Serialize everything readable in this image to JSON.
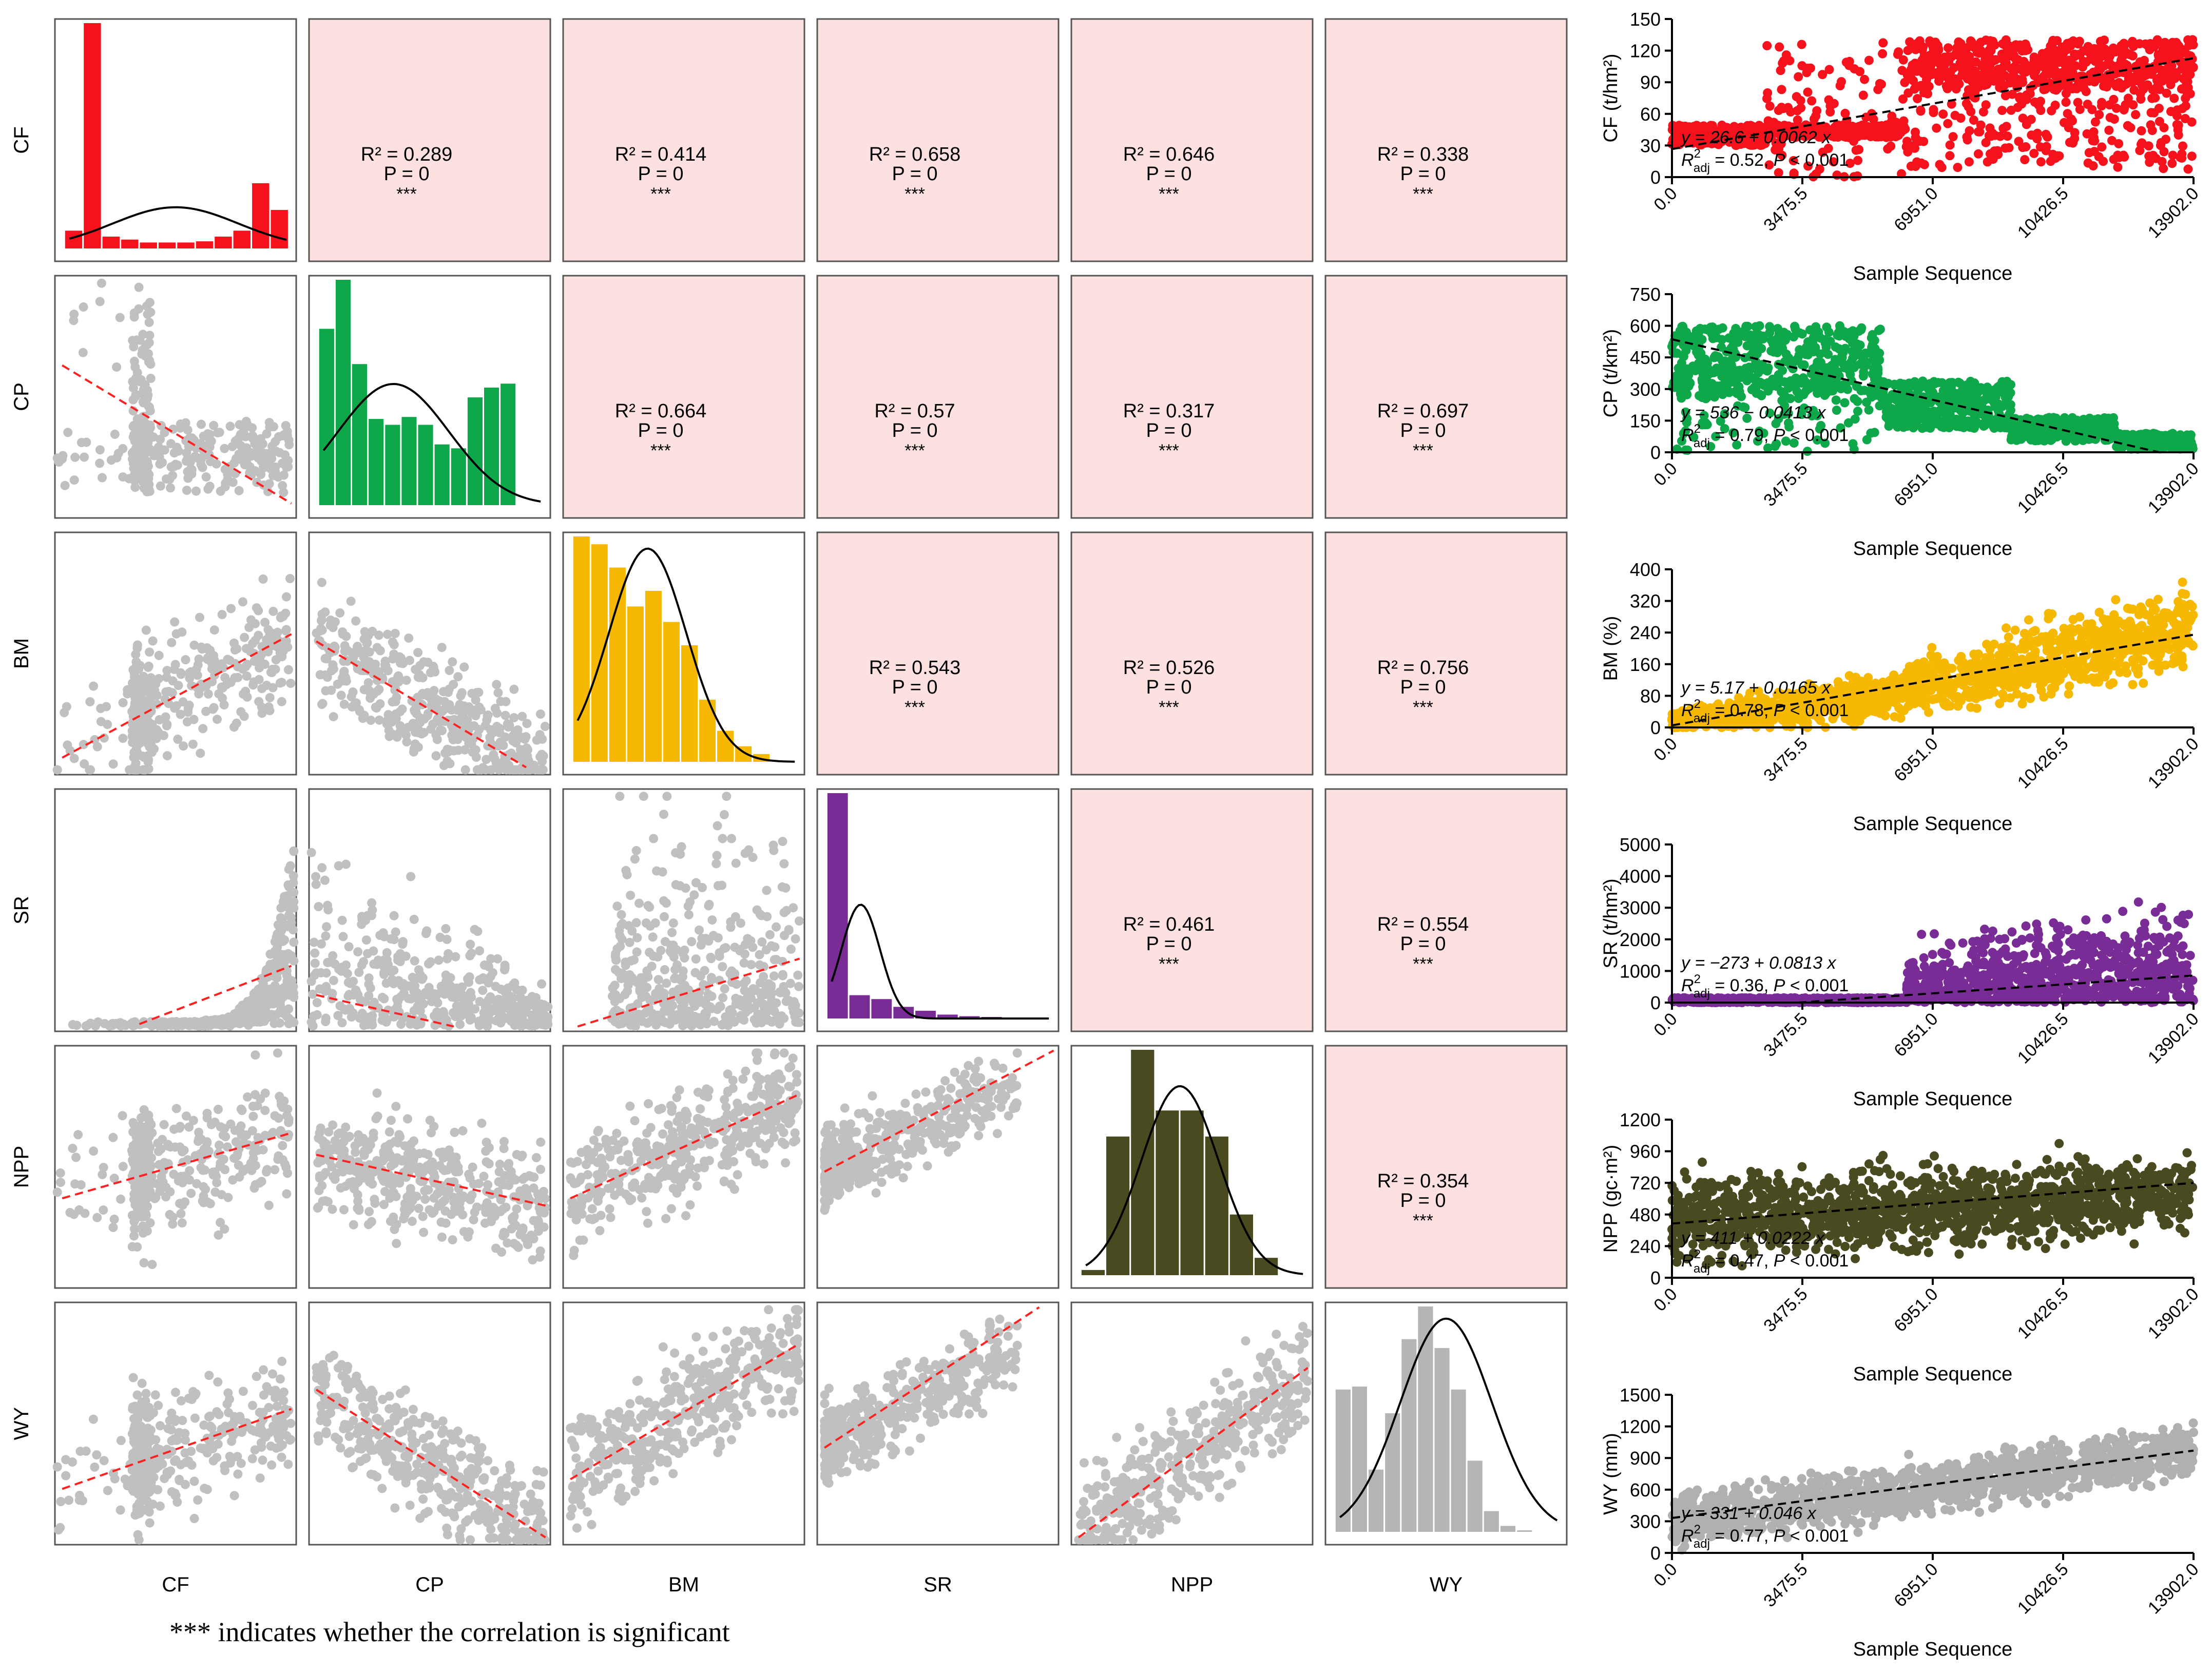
{
  "footnote": "*** indicates whether the correlation is significant",
  "colors": {
    "pair_panel_bg": "#fde0e0",
    "scatter_gray": "#c0c0c0",
    "fit_line_red": "#ff2020",
    "density_curve": "#000000"
  },
  "chart_data": [
    {
      "type": "pair-matrix",
      "variables": [
        "CF",
        "CP",
        "BM",
        "SR",
        "NPP",
        "WY"
      ],
      "variable_colors": [
        "#f5121c",
        "#0ea84a",
        "#f6b800",
        "#7a2c96",
        "#4a4a20",
        "#b5b5b5"
      ],
      "histograms": [
        [
          3.0,
          38.0,
          2.0,
          1.5,
          1.0,
          1.0,
          1.0,
          1.2,
          2.0,
          3.0,
          11.0,
          6.5
        ],
        [
          9.0,
          11.5,
          7.2,
          4.4,
          4.1,
          4.5,
          4.1,
          3.1,
          2.9,
          5.5,
          6.0,
          6.2
        ],
        [
          14.5,
          14.0,
          12.5,
          10.0,
          11.0,
          9.0,
          7.5,
          4.0,
          2.0,
          1.0,
          0.5
        ],
        [
          29.0,
          3.0,
          2.5,
          1.5,
          1.0,
          0.5,
          0.3,
          0.2,
          0.1
        ],
        [
          0.3,
          8.0,
          13.0,
          9.5,
          9.5,
          8.0,
          3.5,
          1.0
        ],
        [
          4.8,
          4.9,
          2.1,
          4.0,
          6.5,
          7.6,
          6.2,
          4.8,
          2.4,
          0.7,
          0.2,
          0.05
        ]
      ],
      "upper_stats": [
        {
          "row": "CF",
          "col": "CP",
          "r2": "R² = 0.289",
          "p": "P = 0",
          "sig": "***"
        },
        {
          "row": "CF",
          "col": "BM",
          "r2": "R² = 0.414",
          "p": "P = 0",
          "sig": "***"
        },
        {
          "row": "CF",
          "col": "SR",
          "r2": "R² = 0.658",
          "p": "P = 0",
          "sig": "***"
        },
        {
          "row": "CF",
          "col": "NPP",
          "r2": "R² = 0.646",
          "p": "P = 0",
          "sig": "***"
        },
        {
          "row": "CF",
          "col": "WY",
          "r2": "R² = 0.338",
          "p": "P = 0",
          "sig": "***"
        },
        {
          "row": "CP",
          "col": "BM",
          "r2": "R² = 0.664",
          "p": "P = 0",
          "sig": "***"
        },
        {
          "row": "CP",
          "col": "SR",
          "r2": "R² = 0.57",
          "p": "P = 0",
          "sig": "***"
        },
        {
          "row": "CP",
          "col": "NPP",
          "r2": "R² = 0.317",
          "p": "P = 0",
          "sig": "***"
        },
        {
          "row": "CP",
          "col": "WY",
          "r2": "R² = 0.697",
          "p": "P = 0",
          "sig": "***"
        },
        {
          "row": "BM",
          "col": "SR",
          "r2": "R² = 0.543",
          "p": "P = 0",
          "sig": "***"
        },
        {
          "row": "BM",
          "col": "NPP",
          "r2": "R² = 0.526",
          "p": "P = 0",
          "sig": "***"
        },
        {
          "row": "BM",
          "col": "WY",
          "r2": "R² = 0.756",
          "p": "P = 0",
          "sig": "***"
        },
        {
          "row": "SR",
          "col": "NPP",
          "r2": "R² = 0.461",
          "p": "P = 0",
          "sig": "***"
        },
        {
          "row": "SR",
          "col": "WY",
          "r2": "R² = 0.554",
          "p": "P = 0",
          "sig": "***"
        },
        {
          "row": "NPP",
          "col": "WY",
          "r2": "R² = 0.354",
          "p": "P = 0",
          "sig": "***"
        }
      ],
      "lower_fits": [
        {
          "row": "CP",
          "col": "CF",
          "x0": 0.03,
          "y0": 0.63,
          "x1": 0.98,
          "y1": 0.06
        },
        {
          "row": "BM",
          "col": "CF",
          "x0": 0.03,
          "y0": 0.07,
          "x1": 0.98,
          "y1": 0.58
        },
        {
          "row": "BM",
          "col": "CP",
          "x0": 0.03,
          "y0": 0.55,
          "x1": 0.9,
          "y1": 0.03
        },
        {
          "row": "SR",
          "col": "CF",
          "x0": 0.35,
          "y0": 0.03,
          "x1": 0.98,
          "y1": 0.27
        },
        {
          "row": "SR",
          "col": "CP",
          "x0": 0.03,
          "y0": 0.15,
          "x1": 0.6,
          "y1": 0.02
        },
        {
          "row": "SR",
          "col": "BM",
          "x0": 0.06,
          "y0": 0.02,
          "x1": 0.98,
          "y1": 0.3
        },
        {
          "row": "NPP",
          "col": "CF",
          "x0": 0.03,
          "y0": 0.37,
          "x1": 0.98,
          "y1": 0.64
        },
        {
          "row": "NPP",
          "col": "CP",
          "x0": 0.03,
          "y0": 0.55,
          "x1": 0.98,
          "y1": 0.34
        },
        {
          "row": "NPP",
          "col": "BM",
          "x0": 0.03,
          "y0": 0.37,
          "x1": 0.98,
          "y1": 0.8
        },
        {
          "row": "NPP",
          "col": "SR",
          "x0": 0.03,
          "y0": 0.48,
          "x1": 0.98,
          "y1": 0.98
        },
        {
          "row": "WY",
          "col": "CF",
          "x0": 0.03,
          "y0": 0.23,
          "x1": 0.98,
          "y1": 0.56
        },
        {
          "row": "WY",
          "col": "CP",
          "x0": 0.03,
          "y0": 0.64,
          "x1": 0.98,
          "y1": 0.03
        },
        {
          "row": "WY",
          "col": "BM",
          "x0": 0.03,
          "y0": 0.27,
          "x1": 0.98,
          "y1": 0.83
        },
        {
          "row": "WY",
          "col": "SR",
          "x0": 0.03,
          "y0": 0.4,
          "x1": 0.92,
          "y1": 0.98
        },
        {
          "row": "WY",
          "col": "NPP",
          "x0": 0.03,
          "y0": 0.03,
          "x1": 0.98,
          "y1": 0.73
        }
      ]
    },
    {
      "type": "scatter",
      "title": "CF",
      "xlabel": "Sample Sequence",
      "ylabel": "CF (t/hm²)",
      "color": "#f5121c",
      "xlim": [
        0,
        13902
      ],
      "ylim": [
        0,
        150
      ],
      "xticks": [
        "0.0",
        "3475.5",
        "6951.0",
        "10426.5",
        "13902.0"
      ],
      "yticks": [
        "0",
        "30",
        "60",
        "90",
        "120",
        "150"
      ],
      "fit": {
        "intercept": 26.6,
        "slope": 0.0062
      },
      "equation": "y = 26.6 + 0.0062 x",
      "stats": "R²adj = 0.52, P < 0.001",
      "stats_r2": "0.52",
      "stats_p": "0.001"
    },
    {
      "type": "scatter",
      "title": "CP",
      "xlabel": "Sample Sequence",
      "ylabel": "CP (t/km²)",
      "color": "#0ea84a",
      "xlim": [
        0,
        13902
      ],
      "ylim": [
        0,
        750
      ],
      "xticks": [
        "0.0",
        "3475.5",
        "6951.0",
        "10426.5",
        "13902.0"
      ],
      "yticks": [
        "0",
        "150",
        "300",
        "450",
        "600",
        "750"
      ],
      "fit": {
        "intercept": 536,
        "slope": -0.0413
      },
      "equation": "y = 536 − 0.0413 x",
      "stats": "R²adj = 0.79, P < 0.001",
      "stats_r2": "0.79",
      "stats_p": "0.001"
    },
    {
      "type": "scatter",
      "title": "BM",
      "xlabel": "Sample Sequence",
      "ylabel": "BM (%)",
      "color": "#f6b800",
      "xlim": [
        0,
        13902
      ],
      "ylim": [
        0,
        400
      ],
      "xticks": [
        "0.0",
        "3475.5",
        "6951.0",
        "10426.5",
        "13902.0"
      ],
      "yticks": [
        "0",
        "80",
        "160",
        "240",
        "320",
        "400"
      ],
      "fit": {
        "intercept": 5.17,
        "slope": 0.0165
      },
      "equation": "y = 5.17 + 0.0165 x",
      "stats": "R²adj = 0.78, P < 0.001",
      "stats_r2": "0.78",
      "stats_p": "0.001"
    },
    {
      "type": "scatter",
      "title": "SR",
      "xlabel": "Sample Sequence",
      "ylabel": "SR (t/hm²)",
      "color": "#7a2c96",
      "xlim": [
        0,
        13902
      ],
      "ylim": [
        0,
        5000
      ],
      "xticks": [
        "0.0",
        "3475.5",
        "6951.0",
        "10426.5",
        "13902.0"
      ],
      "yticks": [
        "0",
        "1000",
        "2000",
        "3000",
        "4000",
        "5000"
      ],
      "fit": {
        "intercept": -273,
        "slope": 0.0813
      },
      "equation": "y = −273 + 0.0813 x",
      "stats": "R²adj = 0.36, P < 0.001",
      "stats_r2": "0.36",
      "stats_p": "0.001"
    },
    {
      "type": "scatter",
      "title": "NPP",
      "xlabel": "Sample Sequence",
      "ylabel": "NPP (gc·m²)",
      "color": "#4a4a20",
      "xlim": [
        0,
        13902
      ],
      "ylim": [
        0,
        1200
      ],
      "xticks": [
        "0.0",
        "3475.5",
        "6951.0",
        "10426.5",
        "13902.0"
      ],
      "yticks": [
        "0",
        "240",
        "480",
        "720",
        "960",
        "1200"
      ],
      "fit": {
        "intercept": 411,
        "slope": 0.0222
      },
      "equation": "y = 411 + 0.0222 x",
      "stats": "R²adj = 0.47, P < 0.001",
      "stats_r2": "0.47",
      "stats_p": "0.001"
    },
    {
      "type": "scatter",
      "title": "WY",
      "xlabel": "Sample Sequence",
      "ylabel": "WY (mm)",
      "color": "#b0b0b0",
      "xlim": [
        0,
        13902
      ],
      "ylim": [
        0,
        1500
      ],
      "xticks": [
        "0.0",
        "3475.5",
        "6951.0",
        "10426.5",
        "13902.0"
      ],
      "yticks": [
        "0",
        "300",
        "600",
        "900",
        "1200",
        "1500"
      ],
      "fit": {
        "intercept": 331,
        "slope": 0.046
      },
      "equation": "y = 331 + 0.046 x",
      "stats": "R²adj = 0.77, P < 0.001",
      "stats_r2": "0.77",
      "stats_p": "0.001"
    }
  ]
}
